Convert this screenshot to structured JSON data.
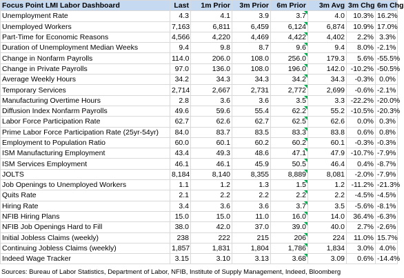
{
  "header": {
    "title": "Focus Point LMI Labor Dashboard",
    "columns": [
      "Last",
      "1m Prior",
      "3m Prior",
      "6m Prior",
      "3m Avg",
      "3m Chg",
      "6m Chg"
    ]
  },
  "table": {
    "rows": [
      [
        "Unemployment Rate",
        "4.3",
        "4.1",
        "3.9",
        "3.7",
        "4.0",
        "10.3%",
        "16.2%"
      ],
      [
        "Unemployed Workers",
        "7,163",
        "6,811",
        "6,459",
        "6,124",
        "6,874",
        "10.9%",
        "17.0%"
      ],
      [
        "Part-Time for Economic Reasons",
        "4,566",
        "4,220",
        "4,469",
        "4,422",
        "4,402",
        "2.2%",
        "3.3%"
      ],
      [
        "Duration of Unemployment Median Weeks",
        "9.4",
        "9.8",
        "8.7",
        "9.6",
        "9.4",
        "8.0%",
        "-2.1%"
      ],
      [
        "Change in Nonfarm Payrolls",
        "114.0",
        "206.0",
        "108.0",
        "256.0",
        "179.3",
        "5.6%",
        "-55.5%"
      ],
      [
        "Change in Private Payrolls",
        "97.0",
        "136.0",
        "108.0",
        "196.0",
        "142.0",
        "-10.2%",
        "-50.5%"
      ],
      [
        "Average Weekly Hours",
        "34.2",
        "34.3",
        "34.3",
        "34.2",
        "34.3",
        "-0.3%",
        "0.0%"
      ],
      [
        "Temporary Services",
        "2,714",
        "2,667",
        "2,731",
        "2,772",
        "2,699",
        "-0.6%",
        "-2.1%"
      ],
      [
        "Manufacturing Overtime Hours",
        "2.8",
        "3.6",
        "3.6",
        "3.5",
        "3.3",
        "-22.2%",
        "-20.0%"
      ],
      [
        "Diffusion Index Nonfarm Payrolls",
        "49.6",
        "59.6",
        "55.4",
        "62.2",
        "55.2",
        "-10.5%",
        "-20.3%"
      ],
      [
        "Labor Force Participation Rate",
        "62.7",
        "62.6",
        "62.7",
        "62.5",
        "62.6",
        "0.0%",
        "0.3%"
      ],
      [
        "Prime Labor Force Participation Rate (25yr-54yr)",
        "84.0",
        "83.7",
        "83.5",
        "83.3",
        "83.8",
        "0.6%",
        "0.8%"
      ],
      [
        "Employment to Population Ratio",
        "60.0",
        "60.1",
        "60.2",
        "60.2",
        "60.1",
        "-0.3%",
        "-0.3%"
      ],
      [
        "ISM Manufacturing Employment",
        "43.4",
        "49.3",
        "48.6",
        "47.1",
        "47.9",
        "-10.7%",
        "-7.9%"
      ],
      [
        "ISM Services Employment",
        "46.1",
        "46.1",
        "45.9",
        "50.5",
        "46.4",
        "0.4%",
        "-8.7%"
      ],
      [
        "JOLTS",
        "8,184",
        "8,140",
        "8,355",
        "8,889",
        "8,081",
        "-2.0%",
        "-7.9%"
      ],
      [
        "Job Openings to Unemployed Workers",
        "1.1",
        "1.2",
        "1.3",
        "1.5",
        "1.2",
        "-11.2%",
        "-21.3%"
      ],
      [
        "Quits Rate",
        "2.1",
        "2.2",
        "2.2",
        "2.2",
        "2.2",
        "-4.5%",
        "-4.5%"
      ],
      [
        "Hiring Rate",
        "3.4",
        "3.6",
        "3.6",
        "3.7",
        "3.5",
        "-5.6%",
        "-8.1%"
      ],
      [
        "NFIB Hiring Plans",
        "15.0",
        "15.0",
        "11.0",
        "16.0",
        "14.0",
        "36.4%",
        "-6.3%"
      ],
      [
        "NFIB Job Openings Hard to Fill",
        "38.0",
        "42.0",
        "37.0",
        "39.0",
        "40.0",
        "2.7%",
        "-2.6%"
      ],
      [
        "Initial Jobless Claims (weekly)",
        "238",
        "222",
        "215",
        "206",
        "224",
        "11.0%",
        "15.7%"
      ],
      [
        "Continuing Jobless Claims (weekly)",
        "1,857",
        "1,831",
        "1,804",
        "1,786",
        "1,834",
        "3.0%",
        "4.0%"
      ],
      [
        "Indeed Wage Tracker",
        "3.15",
        "3.10",
        "3.13",
        "3.68",
        "3.09",
        "0.6%",
        "-14.4%"
      ]
    ]
  },
  "footer": {
    "source": "Sources: Bureau of Labor Statistics, Department of Labor, NFIB, Institute of Supply Management, Indeed, Bloomberg"
  }
}
